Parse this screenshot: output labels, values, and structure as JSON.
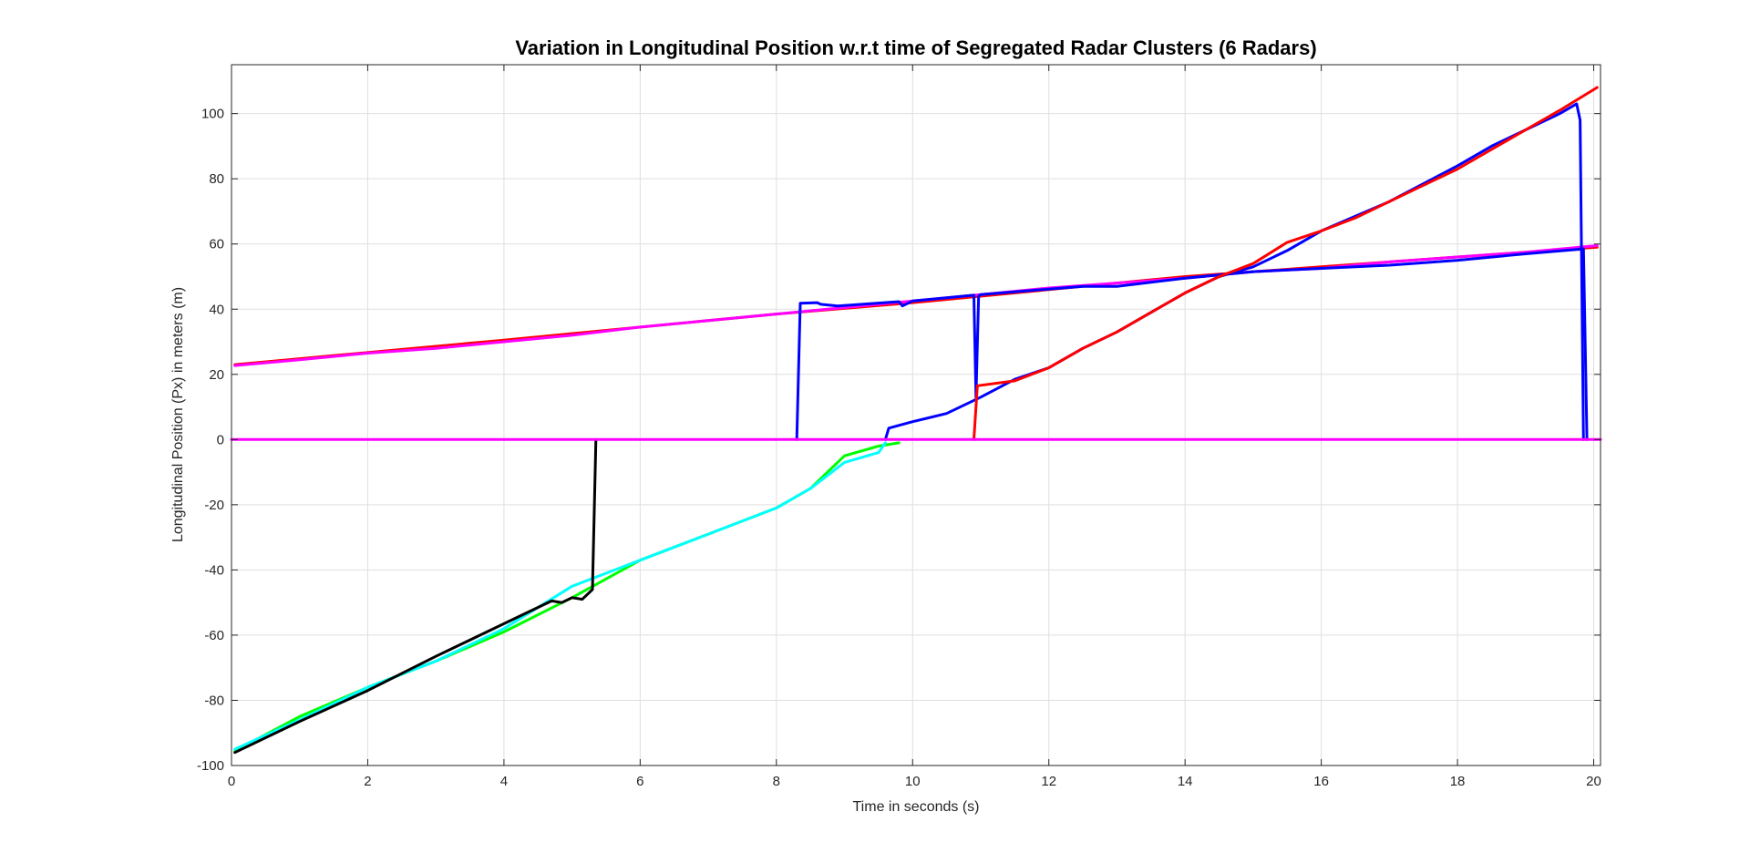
{
  "chart_data": {
    "type": "line",
    "title": "Variation in Longitudinal Position w.r.t time of Segregated Radar Clusters (6 Radars)",
    "xlabel": "Time in seconds (s)",
    "ylabel": "Longitudinal Position (Px) in meters (m)",
    "xlim": [
      0,
      20.1
    ],
    "ylim": [
      -100,
      115
    ],
    "xticks": [
      0,
      2,
      4,
      6,
      8,
      10,
      12,
      14,
      16,
      18,
      20
    ],
    "yticks": [
      -100,
      -80,
      -60,
      -40,
      -20,
      0,
      20,
      40,
      60,
      80,
      100
    ],
    "xtick_labels": [
      "0",
      "2",
      "4",
      "6",
      "8",
      "10",
      "12",
      "14",
      "16",
      "18",
      "20"
    ],
    "ytick_labels": [
      "-100",
      "-80",
      "-60",
      "-40",
      "-20",
      "0",
      "20",
      "40",
      "60",
      "80",
      "100"
    ],
    "grid": true,
    "colors": {
      "axes": "#262626",
      "grid": "#dfdfdf"
    },
    "series": [
      {
        "color": "#ff0000",
        "x": [
          0.05,
          4,
          8,
          10,
          12,
          14,
          16,
          18,
          20.05
        ],
        "y": [
          23,
          30.5,
          38.5,
          42,
          46,
          50,
          53,
          56,
          59
        ]
      },
      {
        "color": "#ff00ff",
        "x": [
          0.05,
          1,
          2,
          3,
          4,
          5,
          6,
          7,
          8,
          9,
          10,
          11,
          12,
          13,
          14,
          15,
          16,
          17,
          18,
          19,
          20.05
        ],
        "y": [
          22.7,
          24.5,
          26.5,
          28,
          30,
          32,
          34.5,
          36.5,
          38.5,
          40.5,
          42.5,
          44.5,
          46.5,
          48,
          49.5,
          51.5,
          52.5,
          54.5,
          56,
          57.5,
          59.5
        ]
      },
      {
        "color": "#0000ff",
        "x": [
          8.3,
          8.35,
          8.6,
          8.65,
          8.9,
          9.8,
          9.85,
          10.0,
          10.9,
          10.93,
          10.97,
          11.0,
          12.5,
          13,
          14,
          15,
          16,
          17,
          18,
          19,
          19.85,
          19.9
        ],
        "y": [
          0,
          41.8,
          42,
          41.5,
          41,
          42.3,
          41,
          42.5,
          44.3,
          13,
          44,
          44.5,
          47,
          47,
          49.5,
          51.5,
          52.5,
          53.5,
          55,
          57,
          58.5,
          0
        ]
      },
      {
        "color": "#0000ff",
        "x": [
          9.6,
          9.65,
          10,
          10.5,
          11,
          11.5,
          12,
          12.5,
          13,
          13.5,
          14,
          14.5,
          15,
          15.5,
          16,
          16.5,
          17,
          17.5,
          18,
          18.5,
          19,
          19.5,
          19.75,
          19.8,
          19.85
        ],
        "y": [
          0,
          3.5,
          5.5,
          8,
          13,
          18.5,
          22,
          28,
          33,
          39,
          45,
          50,
          53,
          58,
          64,
          68.5,
          73,
          78.5,
          84,
          90,
          95,
          100,
          103,
          98,
          0
        ]
      },
      {
        "color": "#ff0000",
        "x": [
          10.9,
          10.95,
          11.5,
          12,
          12.5,
          13,
          13.5,
          14,
          14.5,
          15,
          15.5,
          16,
          16.5,
          17,
          17.5,
          18,
          18.5,
          19,
          19.5,
          20.05
        ],
        "y": [
          0,
          16.5,
          18,
          22,
          28,
          33,
          39,
          45,
          50,
          54,
          60.5,
          64,
          68,
          73,
          78,
          83,
          89,
          95,
          101,
          108
        ]
      },
      {
        "color": "#00ff00",
        "x": [
          0.05,
          1,
          2,
          3,
          4,
          5,
          6,
          7,
          8,
          8.5,
          9,
          9.5,
          9.8
        ],
        "y": [
          -95.5,
          -85,
          -76,
          -68,
          -59,
          -48.5,
          -37,
          -29,
          -21,
          -15,
          -5,
          -2,
          -1
        ]
      },
      {
        "color": "#00ffff",
        "x": [
          0.05,
          1,
          2,
          3,
          4,
          5,
          6,
          7,
          8,
          8.5,
          9,
          9.5,
          9.6
        ],
        "y": [
          -95,
          -86,
          -76,
          -68,
          -58,
          -45,
          -37,
          -29,
          -21,
          -15,
          -7,
          -4,
          -1
        ]
      },
      {
        "color": "#000000",
        "x": [
          0.05,
          1,
          2,
          3,
          4,
          4.7,
          4.85,
          5.0,
          5.15,
          5.3,
          5.35
        ],
        "y": [
          -96,
          -86.5,
          -77,
          -66.5,
          -56.5,
          -49.5,
          -50,
          -48.5,
          -49,
          -46,
          0
        ]
      },
      {
        "color": "#ff00ff",
        "x": [
          0.0,
          20.1
        ],
        "y": [
          0,
          0
        ]
      }
    ]
  }
}
